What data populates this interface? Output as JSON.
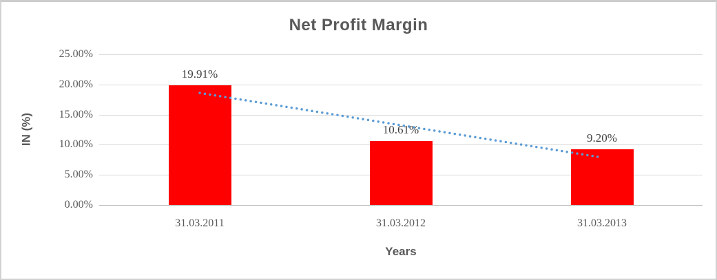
{
  "chart_data": {
    "type": "bar",
    "title": "Net Profit Margin",
    "categories": [
      "31.03.2011",
      "31.03.2012",
      "31.03.2013"
    ],
    "values": [
      19.91,
      10.61,
      9.2
    ],
    "data_labels": [
      "19.91%",
      "10.61%",
      "9.20%"
    ],
    "xlabel": "Years",
    "ylabel": "IN (%)",
    "ylim": [
      0,
      25
    ],
    "ytick_step": 5,
    "ytick_labels": [
      "0.00%",
      "5.00%",
      "10.00%",
      "15.00%",
      "20.00%",
      "25.00%"
    ],
    "grid": true,
    "legend": "none",
    "bar_color": "#FF0000",
    "trendline": {
      "type": "linear",
      "style": "dotted",
      "color": "#5B9BD5"
    },
    "colors": {
      "title": "#595959",
      "axis_title": "#595959",
      "tick_label": "#595959",
      "data_label": "#404040",
      "gridline": "#D9D9D9",
      "axis_line": "#BFBFBF"
    }
  }
}
